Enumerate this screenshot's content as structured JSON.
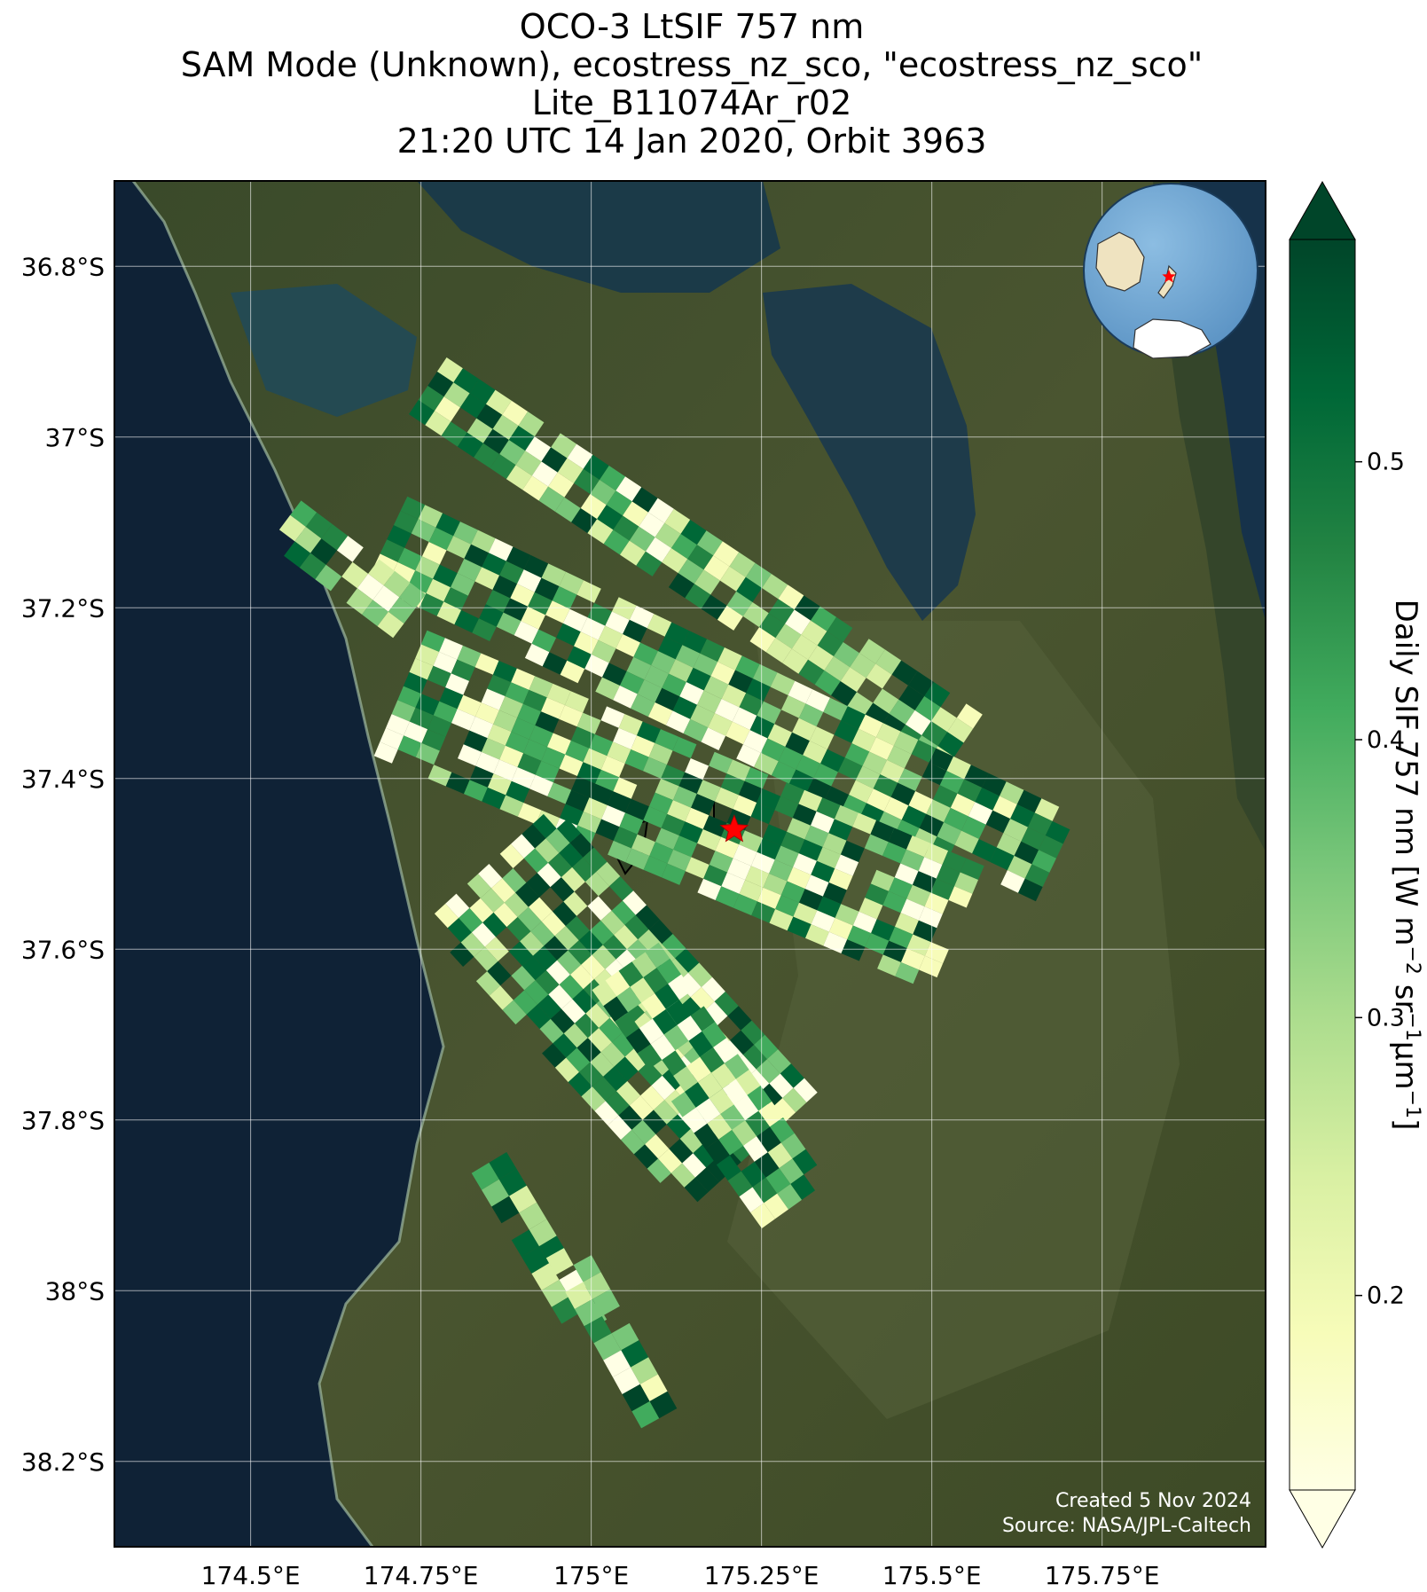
{
  "title": {
    "line1": "OCO-3 LtSIF 757 nm",
    "line2": "SAM Mode (Unknown), ecostress_nz_sco, \"ecostress_nz_sco\"",
    "line3": "Lite_B11074Ar_r02",
    "line4": "21:20 UTC 14 Jan 2020, Orbit 3963"
  },
  "map": {
    "lon_range": [
      174.3,
      175.99
    ],
    "lat_range": [
      -38.3,
      -36.7
    ],
    "lon_ticks": [
      {
        "value": 174.5,
        "label": "174.5°E"
      },
      {
        "value": 174.75,
        "label": "174.75°E"
      },
      {
        "value": 175.0,
        "label": "175°E"
      },
      {
        "value": 175.25,
        "label": "175.25°E"
      },
      {
        "value": 175.5,
        "label": "175.5°E"
      },
      {
        "value": 175.75,
        "label": "175.75°E"
      }
    ],
    "lat_ticks": [
      {
        "value": -36.8,
        "label": "36.8°S"
      },
      {
        "value": -37.0,
        "label": "37°S"
      },
      {
        "value": -37.2,
        "label": "37.2°S"
      },
      {
        "value": -37.4,
        "label": "37.4°S"
      },
      {
        "value": -37.6,
        "label": "37.6°S"
      },
      {
        "value": -37.8,
        "label": "37.8°S"
      },
      {
        "value": -38.0,
        "label": "38°S"
      },
      {
        "value": -38.2,
        "label": "38.2°S"
      }
    ],
    "target_marker": {
      "lon": 175.21,
      "lat": -37.46,
      "color": "#ff0000"
    },
    "grid": true,
    "colors": {
      "ocean": "#0f2236",
      "land": "#3b4a28",
      "grid": "#ffffff"
    },
    "swaths": [
      {
        "lon0": 174.76,
        "lat0": -36.94,
        "lon1": 175.55,
        "lat1": -37.36,
        "halfwidth": 0.05
      },
      {
        "lon0": 174.7,
        "lat0": -37.12,
        "lon1": 175.7,
        "lat1": -37.5,
        "halfwidth": 0.07
      },
      {
        "lon0": 174.55,
        "lat0": -37.1,
        "lon1": 174.75,
        "lat1": -37.22,
        "halfwidth": 0.04
      },
      {
        "lon0": 174.72,
        "lat0": -37.3,
        "lon1": 175.55,
        "lat1": -37.58,
        "halfwidth": 0.1
      },
      {
        "lon0": 174.85,
        "lat0": -37.5,
        "lon1": 175.25,
        "lat1": -37.85,
        "halfwidth": 0.13
      },
      {
        "lon0": 175.05,
        "lat0": -37.62,
        "lon1": 175.3,
        "lat1": -37.9,
        "halfwidth": 0.06
      },
      {
        "lon0": 174.85,
        "lat0": -37.85,
        "lon1": 175.0,
        "lat1": -38.05,
        "halfwidth": 0.03
      },
      {
        "lon0": 174.96,
        "lat0": -37.95,
        "lon1": 175.1,
        "lat1": -38.15,
        "halfwidth": 0.03
      }
    ]
  },
  "inset": {
    "description_icon": "globe-inset-icon",
    "colors": {
      "ocean": "#6fa8d6",
      "land": "#efe3c0",
      "ice": "#ffffff",
      "marker": "#ff0000"
    }
  },
  "colorbar": {
    "label_main": "Daily SIF 757 nm [W m",
    "sup1": "−2",
    "label_mid": " sr",
    "sup2": "−1",
    "label_mu": "μm",
    "sup3": "−1",
    "label_end": "]",
    "range": [
      0.13,
      0.58
    ],
    "ticks": [
      {
        "value": 0.2,
        "label": "0.2"
      },
      {
        "value": 0.3,
        "label": "0.3"
      },
      {
        "value": 0.4,
        "label": "0.4"
      },
      {
        "value": 0.5,
        "label": "0.5"
      }
    ],
    "colormap": [
      "#ffffe5",
      "#f7fcb9",
      "#d9f0a3",
      "#addd8e",
      "#78c679",
      "#41ab5d",
      "#238443",
      "#006837",
      "#004529"
    ]
  },
  "credits": {
    "created": "Created 5 Nov 2024",
    "source": "Source: NASA/JPL-Caltech"
  }
}
